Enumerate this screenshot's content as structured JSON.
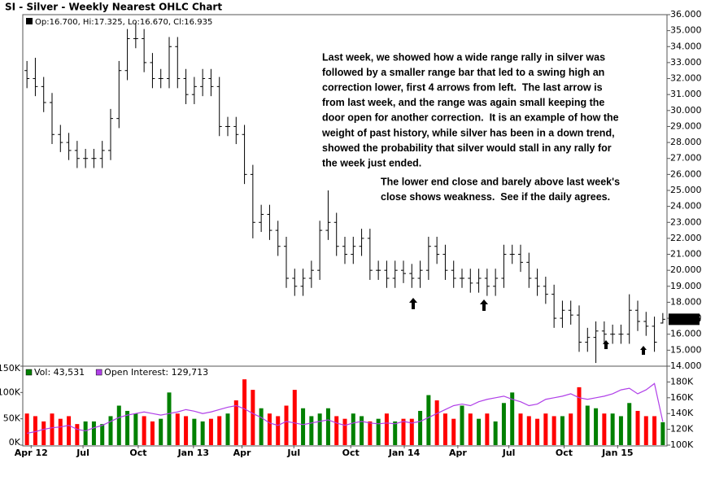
{
  "chart_data": [
    {
      "type": "ohlc",
      "title": "SI - Silver - Weekly Nearest OHLC Chart",
      "legend_text": "Op:16.700, Hi:17.325, Lo:16.670, Cl:16.935",
      "color": "#000000",
      "xlim": [
        -0.5,
        76.5
      ],
      "ylim": [
        14,
        36
      ],
      "yticks": [
        {
          "value": 14,
          "label": "14.000"
        },
        {
          "value": 15,
          "label": "15.000"
        },
        {
          "value": 16,
          "label": "16.000"
        },
        {
          "value": 17,
          "label": "17.000"
        },
        {
          "value": 18,
          "label": "18.000"
        },
        {
          "value": 19,
          "label": "19.000"
        },
        {
          "value": 20,
          "label": "20.000"
        },
        {
          "value": 21,
          "label": "21.000"
        },
        {
          "value": 22,
          "label": "22.000"
        },
        {
          "value": 23,
          "label": "23.000"
        },
        {
          "value": 24,
          "label": "24.000"
        },
        {
          "value": 25,
          "label": "25.000"
        },
        {
          "value": 26,
          "label": "26.000"
        },
        {
          "value": 27,
          "label": "27.000"
        },
        {
          "value": 28,
          "label": "28.000"
        },
        {
          "value": 29,
          "label": "29.000"
        },
        {
          "value": 30,
          "label": "30.000"
        },
        {
          "value": 31,
          "label": "31.000"
        },
        {
          "value": 32,
          "label": "32.000"
        },
        {
          "value": 33,
          "label": "33.000"
        },
        {
          "value": 34,
          "label": "34.000"
        },
        {
          "value": 35,
          "label": "35.000"
        },
        {
          "value": 36,
          "label": "36.000"
        }
      ],
      "grid": false,
      "open": [
        32.5,
        32.0,
        31.5,
        30.5,
        28.5,
        28.0,
        27.5,
        27.0,
        27.0,
        27.0,
        27.5,
        29.5,
        32.5,
        34.5,
        34.5,
        33.0,
        32.0,
        32.0,
        34.0,
        32.0,
        31.0,
        31.5,
        32.0,
        31.5,
        29.0,
        29.0,
        28.5,
        26.0,
        23.0,
        23.5,
        22.5,
        21.5,
        19.5,
        19.0,
        19.5,
        20.0,
        22.5,
        23.0,
        21.5,
        21.0,
        21.5,
        22.0,
        20.0,
        20.0,
        19.5,
        20.0,
        19.8,
        19.5,
        20.0,
        21.5,
        21.0,
        20.0,
        19.5,
        19.5,
        19.2,
        19.5,
        19.0,
        19.5,
        21.0,
        21.0,
        20.5,
        19.5,
        19.0,
        18.5,
        17.0,
        17.5,
        17.2,
        15.5,
        15.8,
        16.2,
        16.0,
        16.0,
        16.0,
        17.5,
        16.8,
        16.5,
        16.7
      ],
      "high": [
        33.1,
        33.3,
        32.1,
        31.1,
        29.1,
        28.6,
        28.1,
        27.6,
        27.6,
        28.1,
        30.1,
        33.1,
        35.1,
        35.5,
        35.1,
        33.6,
        32.6,
        34.6,
        34.6,
        32.6,
        32.1,
        32.6,
        32.6,
        32.1,
        29.6,
        29.6,
        29.1,
        26.6,
        24.1,
        24.1,
        23.1,
        22.1,
        20.1,
        20.1,
        20.6,
        23.1,
        25.0,
        23.6,
        22.1,
        22.1,
        22.6,
        22.6,
        20.6,
        20.6,
        20.6,
        20.6,
        20.4,
        20.6,
        22.1,
        22.1,
        21.6,
        20.6,
        20.1,
        20.1,
        20.1,
        20.1,
        20.1,
        21.6,
        21.6,
        21.6,
        21.1,
        20.1,
        19.6,
        19.1,
        18.1,
        18.1,
        17.8,
        16.4,
        16.8,
        16.8,
        16.6,
        16.6,
        18.5,
        18.1,
        17.4,
        17.1,
        17.325
      ],
      "low": [
        31.4,
        30.9,
        29.9,
        27.9,
        27.4,
        26.9,
        26.4,
        26.4,
        26.4,
        26.4,
        26.9,
        28.9,
        31.9,
        33.9,
        32.4,
        31.4,
        31.4,
        31.4,
        31.4,
        30.4,
        30.4,
        30.9,
        30.9,
        28.4,
        28.4,
        27.9,
        25.4,
        22.0,
        22.4,
        21.9,
        20.9,
        18.9,
        18.4,
        18.4,
        18.9,
        19.4,
        21.9,
        20.9,
        20.4,
        20.4,
        20.9,
        19.4,
        19.4,
        18.9,
        18.9,
        19.2,
        18.9,
        18.9,
        19.4,
        20.4,
        19.4,
        18.9,
        18.9,
        18.6,
        18.6,
        18.4,
        18.4,
        18.9,
        20.4,
        19.9,
        18.9,
        18.4,
        17.9,
        16.4,
        16.4,
        16.6,
        14.9,
        14.9,
        14.2,
        15.4,
        15.4,
        15.4,
        15.4,
        16.2,
        15.9,
        14.9,
        16.67
      ],
      "close": [
        32.0,
        31.5,
        30.5,
        28.5,
        28.0,
        27.5,
        27.0,
        27.0,
        27.0,
        27.5,
        29.5,
        32.5,
        34.5,
        34.5,
        33.0,
        32.0,
        32.0,
        34.0,
        32.0,
        31.0,
        31.5,
        32.0,
        31.5,
        29.0,
        29.0,
        28.5,
        26.0,
        23.0,
        23.5,
        22.5,
        21.5,
        19.5,
        19.0,
        19.5,
        20.0,
        22.5,
        23.0,
        21.5,
        21.0,
        21.5,
        22.0,
        20.0,
        20.0,
        19.5,
        20.0,
        19.8,
        19.5,
        20.0,
        21.5,
        21.0,
        20.0,
        19.5,
        19.5,
        19.2,
        19.5,
        19.0,
        19.5,
        21.0,
        21.0,
        20.5,
        19.5,
        19.0,
        18.5,
        17.0,
        17.5,
        17.2,
        15.5,
        15.8,
        16.2,
        16.0,
        16.0,
        16.0,
        17.5,
        16.8,
        16.5,
        15.5,
        16.935
      ],
      "annotations": [
        {
          "lines": [
            "Last week, we showed how a wide range rally in silver was",
            "followed by a smaller range bar that led to a swing high an",
            "correction lower, first 4 arrows from left.  The last arrow is",
            "from last week, and the range was again small keeping the",
            "door open for another correction.  It is an example of how the",
            "weight of past history, while silver has been in a down trend,",
            "showed the probability that silver would stall in any rally for",
            "the week just ended."
          ]
        },
        {
          "lines": [
            "The lower end close and barely above last week's",
            "close shows weakness.  See if the daily agrees."
          ]
        }
      ]
    },
    {
      "type": "bar",
      "xlim": [
        -0.5,
        76.5
      ],
      "xticks": [
        {
          "value": 0.5,
          "label": "Apr 12"
        },
        {
          "value": 6.7,
          "label": "Jul"
        },
        {
          "value": 13.3,
          "label": "Oct"
        },
        {
          "value": 19.9,
          "label": "Jan 13"
        },
        {
          "value": 25.7,
          "label": "Apr"
        },
        {
          "value": 31.9,
          "label": "Jul"
        },
        {
          "value": 38.7,
          "label": "Oct"
        },
        {
          "value": 45.1,
          "label": "Jan 14"
        },
        {
          "value": 51.5,
          "label": "Apr"
        },
        {
          "value": 57.6,
          "label": "Jul"
        },
        {
          "value": 64.2,
          "label": "Oct"
        },
        {
          "value": 70.6,
          "label": "Jan 15"
        }
      ],
      "ylim": [
        0,
        150000
      ],
      "yticks": [
        {
          "value": 0,
          "label": "0K"
        },
        {
          "value": 50000,
          "label": "50K"
        },
        {
          "value": 100000,
          "label": "100K"
        },
        {
          "value": 150000,
          "label": "150K"
        }
      ],
      "y2lim": [
        100000,
        200000
      ],
      "y2ticks": [
        {
          "value": 100000,
          "label": "100K"
        },
        {
          "value": 120000,
          "label": "120K"
        },
        {
          "value": 140000,
          "label": "140K"
        },
        {
          "value": 160000,
          "label": "160K"
        },
        {
          "value": 180000,
          "label": "180K"
        }
      ],
      "series": [
        {
          "name": "Vol: 43,531",
          "up_color": "#008000",
          "down_color": "#ff0000",
          "values": [
            60000,
            55000,
            45000,
            60000,
            50000,
            55000,
            40000,
            45000,
            45000,
            40000,
            55000,
            75000,
            65000,
            60000,
            55000,
            45000,
            50000,
            100000,
            60000,
            55000,
            50000,
            45000,
            50000,
            55000,
            60000,
            85000,
            125000,
            105000,
            70000,
            60000,
            55000,
            75000,
            105000,
            70000,
            55000,
            60000,
            70000,
            55000,
            50000,
            60000,
            55000,
            45000,
            50000,
            60000,
            45000,
            50000,
            50000,
            65000,
            95000,
            85000,
            60000,
            50000,
            75000,
            60000,
            50000,
            60000,
            45000,
            80000,
            100000,
            60000,
            55000,
            50000,
            60000,
            55000,
            55000,
            60000,
            110000,
            75000,
            70000,
            60000,
            60000,
            55000,
            80000,
            65000,
            55000,
            55000,
            43531
          ]
        },
        {
          "name": "Open Interest: 129,713",
          "color": "#b040e8",
          "axis": "y2",
          "values": [
            115000,
            117000,
            120000,
            122000,
            123000,
            125000,
            120000,
            118000,
            122000,
            125000,
            130000,
            135000,
            138000,
            140000,
            142000,
            140000,
            138000,
            140000,
            142000,
            145000,
            143000,
            140000,
            142000,
            145000,
            148000,
            150000,
            146000,
            140000,
            135000,
            128000,
            125000,
            130000,
            128000,
            126000,
            128000,
            130000,
            132000,
            128000,
            125000,
            128000,
            130000,
            128000,
            127000,
            128000,
            127000,
            130000,
            128000,
            130000,
            135000,
            140000,
            145000,
            150000,
            152000,
            150000,
            155000,
            158000,
            160000,
            162000,
            158000,
            155000,
            150000,
            152000,
            158000,
            160000,
            162000,
            165000,
            160000,
            158000,
            160000,
            162000,
            165000,
            170000,
            172000,
            165000,
            170000,
            178000,
            129713
          ]
        }
      ]
    }
  ]
}
